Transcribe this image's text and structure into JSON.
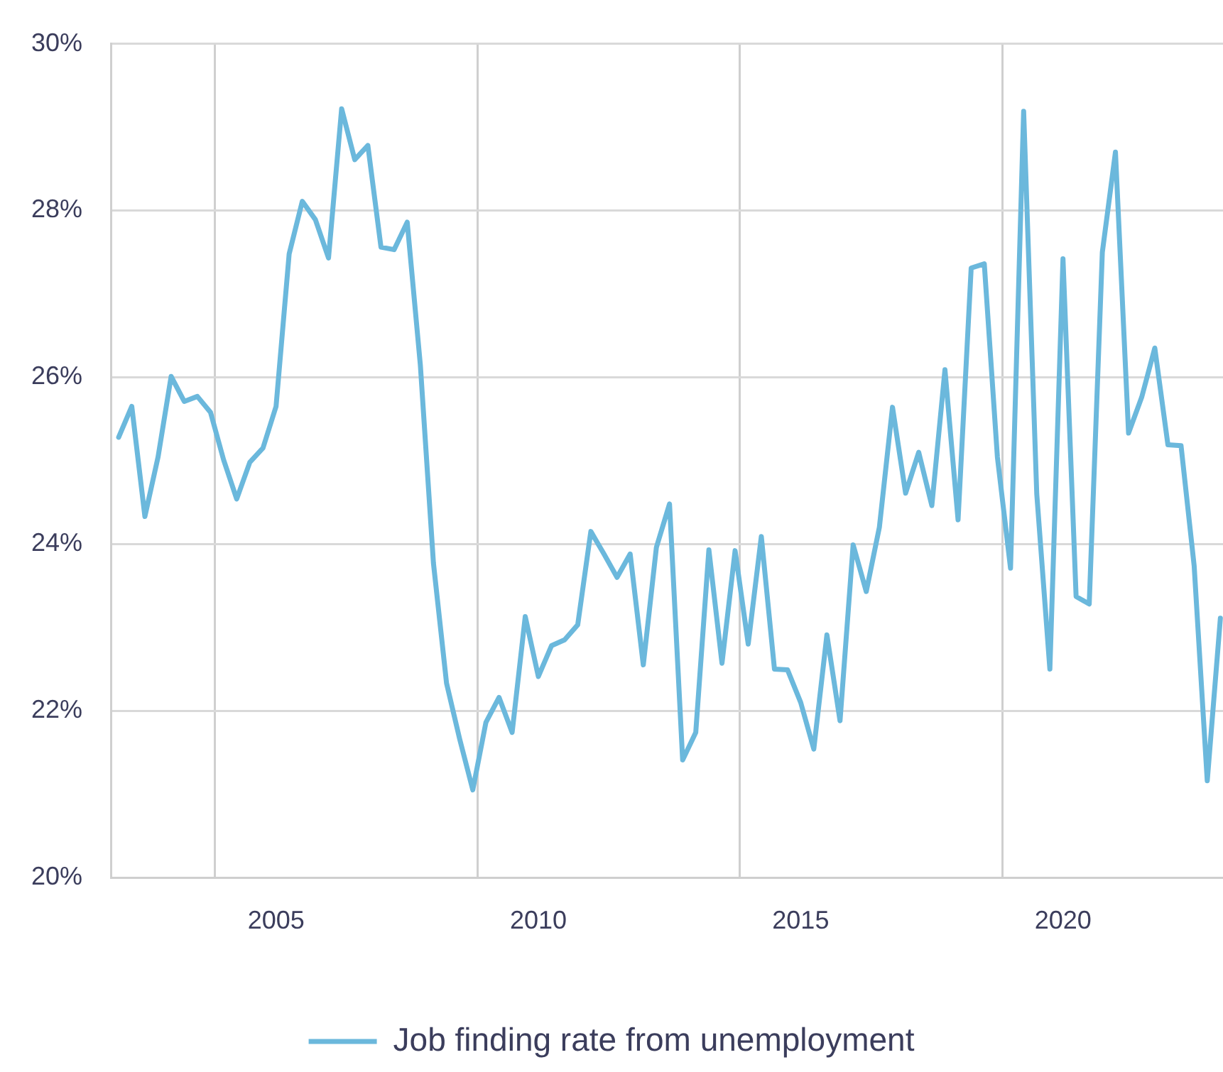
{
  "chart_data": {
    "type": "line",
    "x": [
      2002,
      2002.25,
      2002.5,
      2002.75,
      2003,
      2003.25,
      2003.5,
      2003.75,
      2004,
      2004.25,
      2004.5,
      2004.75,
      2005,
      2005.25,
      2005.5,
      2005.75,
      2006,
      2006.25,
      2006.5,
      2006.75,
      2007,
      2007.25,
      2007.5,
      2007.75,
      2008,
      2008.25,
      2008.5,
      2008.75,
      2009,
      2009.25,
      2009.5,
      2009.75,
      2010,
      2010.25,
      2010.5,
      2010.75,
      2011,
      2011.25,
      2011.5,
      2011.75,
      2012,
      2012.25,
      2012.5,
      2012.75,
      2013,
      2013.25,
      2013.5,
      2013.75,
      2014,
      2014.25,
      2014.5,
      2014.75,
      2015,
      2015.25,
      2015.5,
      2015.75,
      2016,
      2016.25,
      2016.5,
      2016.75,
      2017,
      2017.25,
      2017.5,
      2017.75,
      2018,
      2018.25,
      2018.5,
      2018.75,
      2019,
      2019.25,
      2019.5,
      2019.75,
      2020,
      2020.25,
      2020.5,
      2020.75,
      2021,
      2021.25,
      2021.5,
      2021.75,
      2022,
      2022.25,
      2022.5,
      2022.75,
      2023
    ],
    "series": [
      {
        "name": "Job finding rate from unemployment",
        "color": "#6bb8dc",
        "values": [
          25.28,
          25.65,
          24.33,
          25.04,
          26.01,
          25.71,
          25.77,
          25.58,
          25.01,
          24.54,
          24.98,
          25.15,
          25.65,
          27.48,
          28.11,
          27.89,
          27.43,
          29.22,
          28.61,
          28.78,
          27.56,
          27.53,
          27.86,
          26.15,
          23.77,
          22.33,
          21.66,
          21.05,
          21.86,
          22.16,
          21.74,
          23.13,
          22.41,
          22.78,
          22.85,
          23.03,
          24.15,
          23.88,
          23.6,
          23.88,
          22.55,
          23.96,
          24.48,
          21.41,
          21.74,
          23.93,
          22.57,
          23.92,
          22.8,
          24.09,
          22.5,
          22.49,
          22.1,
          21.54,
          22.91,
          21.88,
          23.99,
          23.43,
          24.2,
          25.64,
          24.61,
          25.1,
          24.46,
          26.09,
          24.29,
          27.31,
          27.36,
          25.04,
          23.71,
          29.19,
          24.6,
          22.5,
          27.42,
          23.37,
          23.28,
          27.5,
          28.7,
          25.33,
          25.76,
          26.35,
          25.19,
          25.18,
          23.74,
          21.16,
          23.11
        ]
      }
    ],
    "xlim": [
      2001.85,
      2023.05
    ],
    "xticks": [
      {
        "value": 2003.84,
        "label": null
      },
      {
        "value": 2005,
        "label": "2005"
      },
      {
        "value": 2008.84,
        "label": null
      },
      {
        "value": 2010,
        "label": "2010"
      },
      {
        "value": 2013.84,
        "label": null
      },
      {
        "value": 2015,
        "label": "2015"
      },
      {
        "value": 2018.84,
        "label": null
      },
      {
        "value": 2020,
        "label": "2020"
      }
    ],
    "ylim": [
      20,
      30
    ],
    "yticks": [
      {
        "value": 20,
        "label": "20%"
      },
      {
        "value": 22,
        "label": "22%"
      },
      {
        "value": 24,
        "label": "24%"
      },
      {
        "value": 26,
        "label": "26%"
      },
      {
        "value": 28,
        "label": "28%"
      },
      {
        "value": 30,
        "label": "30%"
      }
    ],
    "grid": true,
    "legend": "bottom",
    "marker": "none",
    "line_style": "solid"
  }
}
